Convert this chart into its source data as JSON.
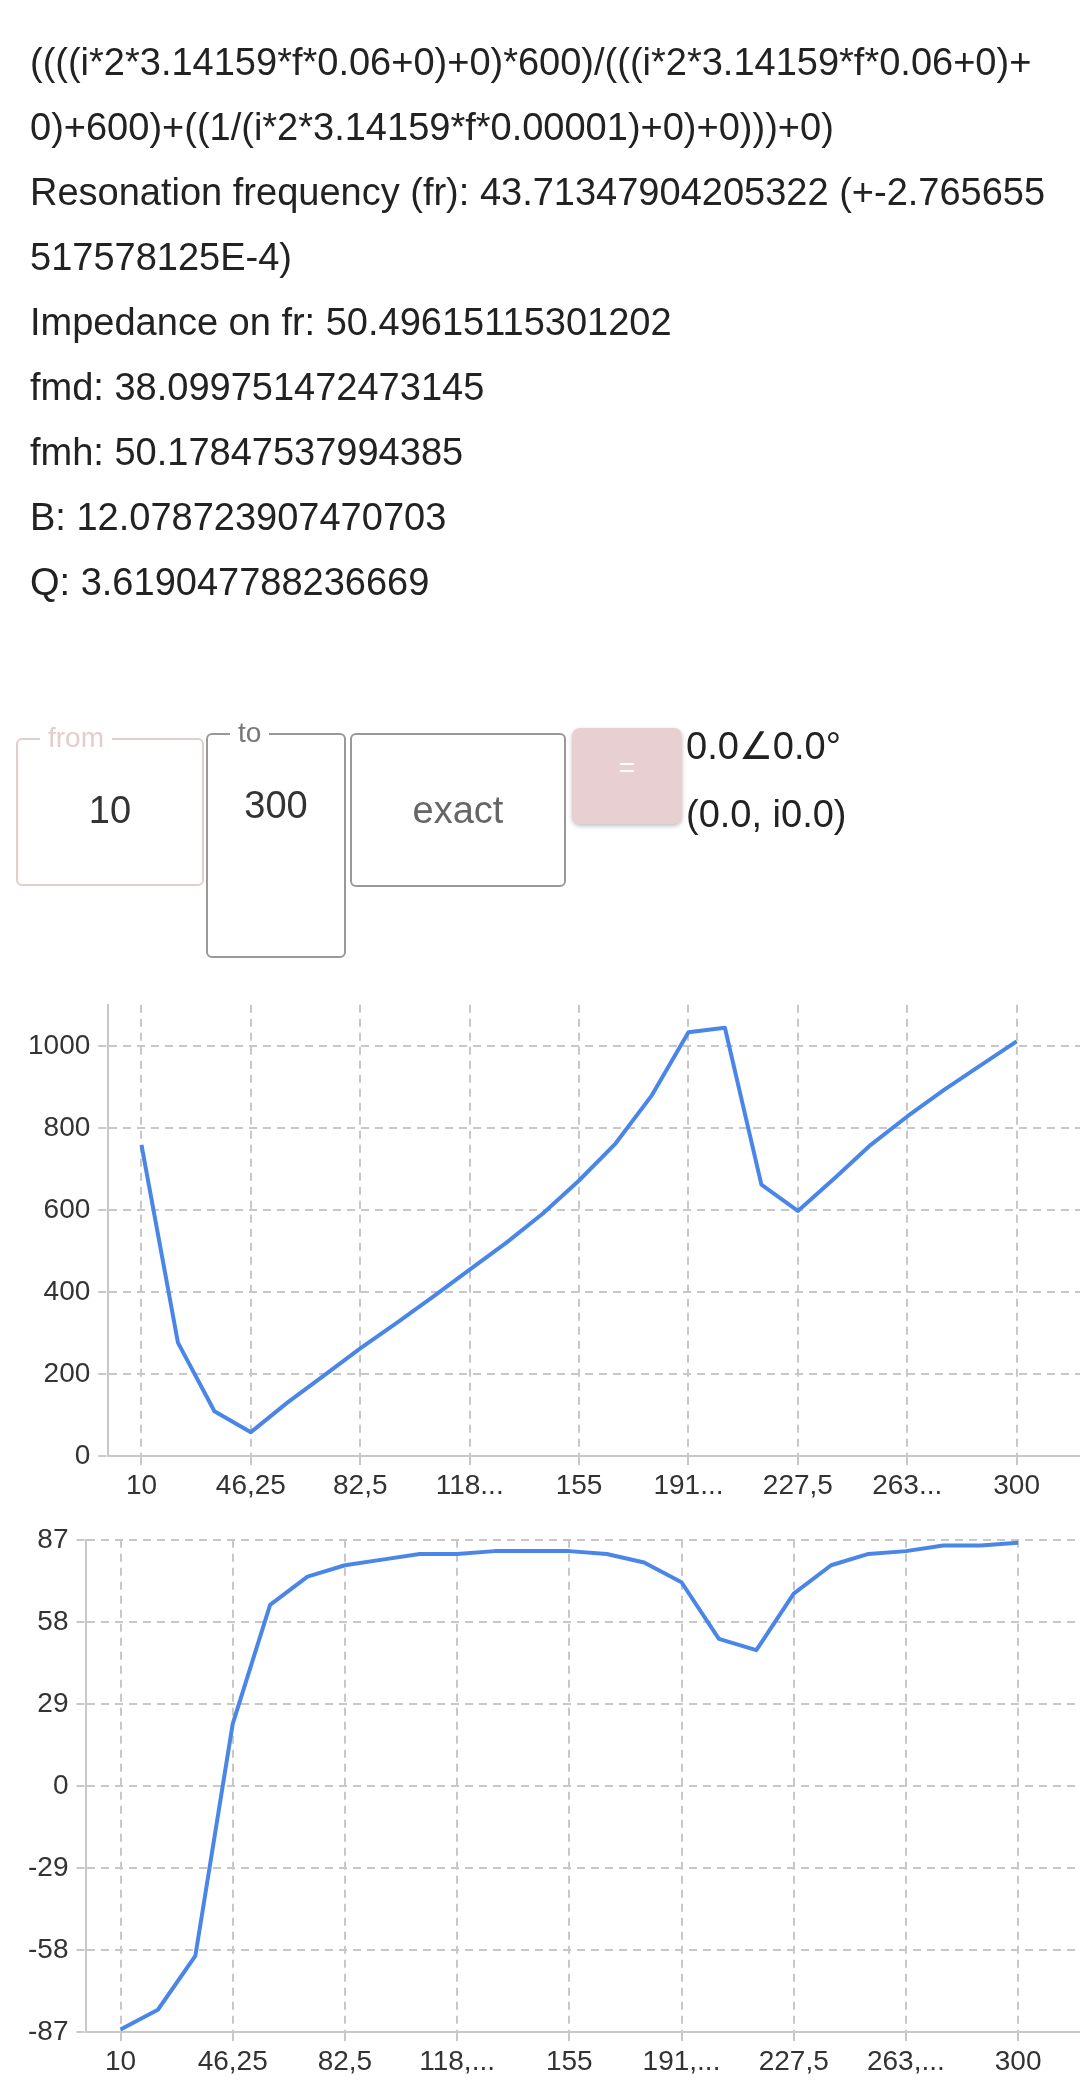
{
  "chart_data": [
    {
      "type": "other",
      "annotations": [
        "((((i*2*3.14159*f*0.06+0)+0)*600)/(((i*2*3.14159*f*0.06+0)+0)+600)+((1/(i*2*3.14159*f*0.00001)+0)+0)))+0)",
        "Resonation frequency (fr): 43.71347904205322 (+-2.765655517578125E-4)",
        "Impedance on fr: 50.49615115301202",
        "fmd: 38.099751472473145",
        "fmh: 50.17847537994385",
        "B: 12.078723907470703",
        "Q: 3.619047788236669",
        "from",
        "10",
        "to",
        "300",
        "exact",
        "=",
        "0.0∠0.0°",
        "(0.0, i0.0)"
      ]
    },
    {
      "type": "line",
      "color": "#4a86e8",
      "marker": "none",
      "grid": true,
      "x": [
        10,
        22.08,
        34.17,
        46.25,
        58.33,
        70.42,
        82.5,
        94.58,
        106.67,
        118.75,
        130.83,
        142.92,
        155,
        167.08,
        179.17,
        191.25,
        203.33,
        215.42,
        227.5,
        239.58,
        251.67,
        263.75,
        275.83,
        287.92,
        300
      ],
      "values": [
        759,
        277,
        110,
        59,
        131,
        197,
        263,
        325,
        389,
        455,
        520,
        591,
        672,
        762,
        880,
        1033,
        1044,
        662,
        598,
        677,
        759,
        828,
        892,
        952,
        1011
      ],
      "xlim": [
        -1,
        321
      ],
      "xticks": [
        10,
        {
          "value": 46.25,
          "label": "46,25"
        },
        {
          "value": 82.5,
          "label": "82,5"
        },
        {
          "value": 118.75,
          "label": "118..."
        },
        155,
        {
          "value": 191.25,
          "label": "191..."
        },
        {
          "value": 227.5,
          "label": "227,5"
        },
        {
          "value": 263.75,
          "label": "263..."
        },
        300
      ],
      "ylim": [
        0,
        1100
      ],
      "yticks": [
        0,
        200,
        400,
        600,
        800,
        1000
      ]
    },
    {
      "type": "line",
      "color": "#4a86e8",
      "marker": "none",
      "grid": true,
      "x": [
        10,
        22.08,
        34.17,
        46.25,
        58.33,
        70.42,
        82.5,
        94.58,
        106.67,
        118.75,
        130.83,
        142.92,
        155,
        167.08,
        179.17,
        191.25,
        203.33,
        215.42,
        227.5,
        239.58,
        251.67,
        263.75,
        275.83,
        287.92,
        300
      ],
      "values": [
        -86,
        -79,
        -60,
        22,
        64,
        74,
        78,
        80,
        82,
        82,
        83,
        83,
        83,
        82,
        79,
        72,
        52,
        48,
        68,
        78,
        82,
        83,
        85,
        85,
        86
      ],
      "xlim": [
        -1,
        320
      ],
      "xticks": [
        10,
        {
          "value": 46.25,
          "label": "46,25"
        },
        {
          "value": 82.5,
          "label": "82,5"
        },
        {
          "value": 118.75,
          "label": "118,..."
        },
        155,
        {
          "value": 191.25,
          "label": "191,..."
        },
        {
          "value": 227.5,
          "label": "227,5"
        },
        {
          "value": 263.75,
          "label": "263,..."
        },
        300
      ],
      "ylim": [
        -87,
        87
      ],
      "yticks": [
        -87,
        -58,
        -29,
        0,
        29,
        58,
        87
      ]
    }
  ]
}
